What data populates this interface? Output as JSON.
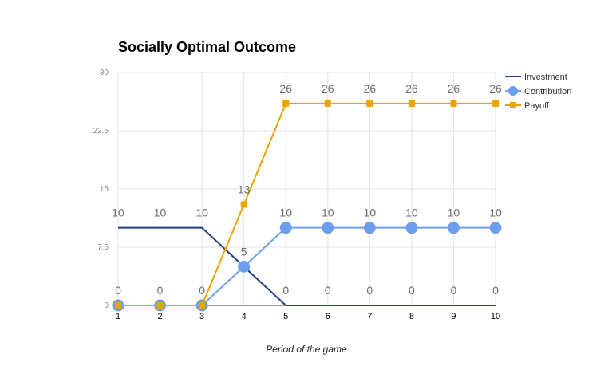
{
  "chart_data": {
    "type": "line",
    "title": "Socially Optimal Outcome",
    "xlabel": "Period of the game",
    "ylabel": "",
    "categories": [
      "1",
      "2",
      "3",
      "4",
      "5",
      "6",
      "7",
      "8",
      "9",
      "10"
    ],
    "ylim": [
      0,
      30
    ],
    "yticks": [
      "0",
      "7.5",
      "15",
      "22.5",
      "30"
    ],
    "grid": true,
    "legend_position": "right",
    "series": [
      {
        "name": "Investment",
        "values": [
          10,
          10,
          10,
          5,
          0,
          0,
          0,
          0,
          0,
          0
        ],
        "color": "#1f3f7f",
        "marker": "none",
        "data_labels": [
          "10",
          "10",
          "10",
          "",
          "0",
          "0",
          "0",
          "0",
          "0",
          "0"
        ]
      },
      {
        "name": "Contribution",
        "values": [
          0,
          0,
          0,
          5,
          10,
          10,
          10,
          10,
          10,
          10
        ],
        "color": "#6d9eeb",
        "marker": "circle",
        "data_labels": [
          "0",
          "0",
          "0",
          "5",
          "10",
          "10",
          "10",
          "10",
          "10",
          "10"
        ]
      },
      {
        "name": "Payoff",
        "values": [
          0,
          0,
          0,
          13,
          26,
          26,
          26,
          26,
          26,
          26
        ],
        "color": "#e9a400",
        "marker": "square",
        "data_labels": [
          "",
          "",
          "",
          "13",
          "26",
          "26",
          "26",
          "26",
          "26",
          "26"
        ]
      }
    ]
  }
}
